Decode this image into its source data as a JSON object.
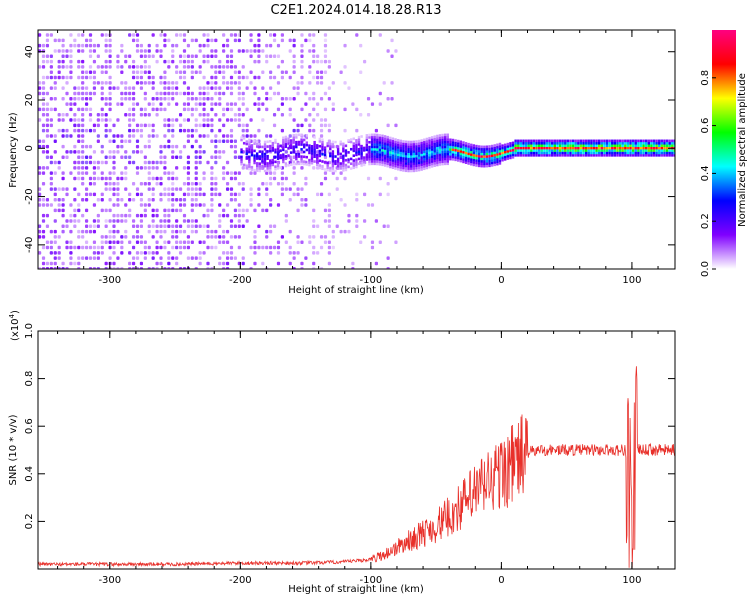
{
  "title": "C2E1.2024.014.18.28.R13",
  "chart_data": [
    {
      "type": "heatmap",
      "xlabel": "Height of straight line (km)",
      "ylabel": "Frequency (Hz)",
      "xlim": [
        -355,
        133
      ],
      "ylim": [
        -50,
        49
      ],
      "xticks": [
        -300,
        -200,
        -100,
        0,
        100
      ],
      "yticks": [
        -40,
        -20,
        0,
        20,
        40
      ],
      "colorbar": {
        "label": "Normalized spectral amplitude",
        "range": [
          0,
          1
        ],
        "ticks": [
          0.0,
          0.2,
          0.4,
          0.6,
          0.8
        ],
        "colormap": [
          "#ffffff",
          "#8000ff",
          "#0000ff",
          "#00ffff",
          "#00ff00",
          "#ffff00",
          "#ff0000",
          "#ff0080"
        ]
      },
      "features": {
        "noise_region_x": [
          -355,
          -100
        ],
        "line_freq_hz": 0,
        "bright_line_start_x": -180,
        "strong_line_start_x": -40
      }
    },
    {
      "type": "line",
      "xlabel": "Height of straight line (km)",
      "ylabel": "SNR (10 * v/v)",
      "yscale_label": "(x10",
      "yscale_exp": "4",
      "yscale_close": ")",
      "xlim": [
        -355,
        133
      ],
      "ylim": [
        0,
        1.0
      ],
      "xticks": [
        -300,
        -200,
        -100,
        0,
        100
      ],
      "yticks": [
        0.2,
        0.4,
        0.6,
        0.8,
        1.0
      ],
      "series": [
        {
          "color": "#e8302a",
          "x": [
            -355,
            -300,
            -250,
            -200,
            -150,
            -120,
            -100,
            -90,
            -80,
            -70,
            -60,
            -50,
            -40,
            -30,
            -20,
            -10,
            0,
            10,
            20,
            30,
            40,
            60,
            80,
            95,
            98,
            100,
            102,
            105,
            110,
            120,
            133
          ],
          "y": [
            0.02,
            0.02,
            0.02,
            0.025,
            0.025,
            0.03,
            0.04,
            0.06,
            0.09,
            0.12,
            0.15,
            0.18,
            0.22,
            0.27,
            0.32,
            0.37,
            0.4,
            0.45,
            0.49,
            0.5,
            0.5,
            0.5,
            0.5,
            0.5,
            0.4,
            0.1,
            0.45,
            0.5,
            0.5,
            0.5,
            0.5
          ]
        }
      ]
    }
  ]
}
